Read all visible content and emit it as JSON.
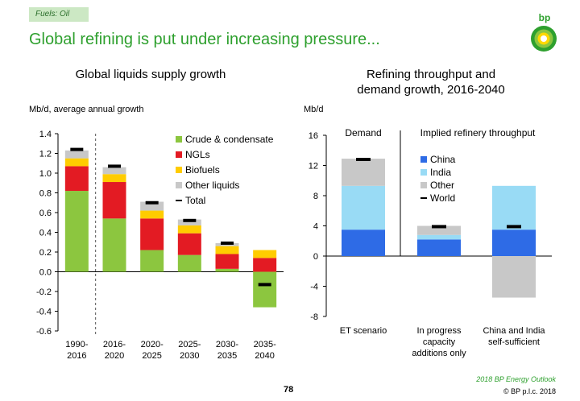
{
  "tag": "Fuels: Oil",
  "headline": "Global refining is put under increasing pressure...",
  "logo_text": "bp",
  "page_number": "78",
  "footer_source": "2018 BP Energy Outlook",
  "footer_copyright": "© BP p.l.c. 2018",
  "colors": {
    "crude": "#8cc63f",
    "ngls": "#e31b23",
    "biofuels": "#ffcc00",
    "other_liquids": "#c8c8c8",
    "china": "#2e6be6",
    "india": "#99dbf5",
    "other": "#c8c8c8",
    "marker": "#000000",
    "headline": "#2ea02e"
  },
  "chart_data": [
    {
      "type": "bar",
      "stacked": true,
      "title": "Global liquids supply growth",
      "ylabel": "Mb/d, average annual growth",
      "ylim": [
        -0.6,
        1.4
      ],
      "yticks": [
        -0.6,
        -0.4,
        -0.2,
        0.0,
        0.2,
        0.4,
        0.6,
        0.8,
        1.0,
        1.2,
        1.4
      ],
      "ytick_labels": [
        "-0.6",
        "-0.4",
        "-0.2",
        "0.0",
        "0.2",
        "0.4",
        "0.6",
        "0.8",
        "1.0",
        "1.2",
        "1.4"
      ],
      "categories": [
        "1990-\n2016",
        "2016-\n2020",
        "2020-\n2025",
        "2025-\n2030",
        "2030-\n2035",
        "2035-\n2040"
      ],
      "series": [
        {
          "name": "Crude & condensate",
          "values": [
            0.82,
            0.54,
            0.22,
            0.17,
            0.03,
            -0.36
          ]
        },
        {
          "name": "NGLs",
          "values": [
            0.25,
            0.37,
            0.32,
            0.22,
            0.15,
            0.14
          ]
        },
        {
          "name": "Biofuels",
          "values": [
            0.08,
            0.08,
            0.08,
            0.08,
            0.08,
            0.08
          ]
        },
        {
          "name": "Other liquids",
          "values": [
            0.08,
            0.07,
            0.09,
            0.06,
            0.03,
            0.0
          ]
        }
      ],
      "total_marker": {
        "name": "Total",
        "values": [
          1.24,
          1.07,
          0.7,
          0.52,
          0.29,
          -0.13
        ]
      },
      "divider_after_category": 0,
      "legend": [
        "Crude & condensate",
        "NGLs",
        "Biofuels",
        "Other liquids",
        "Total"
      ],
      "legend_position": "top-right",
      "grid": false
    },
    {
      "type": "bar",
      "stacked": true,
      "title": "Refining throughput and demand growth, 2016-2040",
      "ylabel": "Mb/d",
      "ylim": [
        -8,
        16
      ],
      "yticks": [
        -8,
        -4,
        0,
        4,
        8,
        12,
        16
      ],
      "ytick_labels": [
        "-8",
        "-4",
        "0",
        "4",
        "8",
        "12",
        "16"
      ],
      "categories": [
        "ET scenario",
        "In progress\ncapacity\nadditions only",
        "China and India\nself-sufficient"
      ],
      "series": [
        {
          "name": "China",
          "values": [
            3.5,
            2.2,
            3.5
          ]
        },
        {
          "name": "India",
          "values": [
            5.8,
            0.6,
            5.8
          ]
        },
        {
          "name": "Other",
          "values": [
            3.6,
            1.2,
            -5.5
          ]
        }
      ],
      "world_marker": {
        "name": "World",
        "values": [
          12.8,
          3.9,
          3.9
        ]
      },
      "section_labels": [
        "Demand",
        "Implied refinery throughput"
      ],
      "legend": [
        "China",
        "India",
        "Other",
        "World"
      ],
      "legend_position": "top-right",
      "grid": false
    }
  ]
}
